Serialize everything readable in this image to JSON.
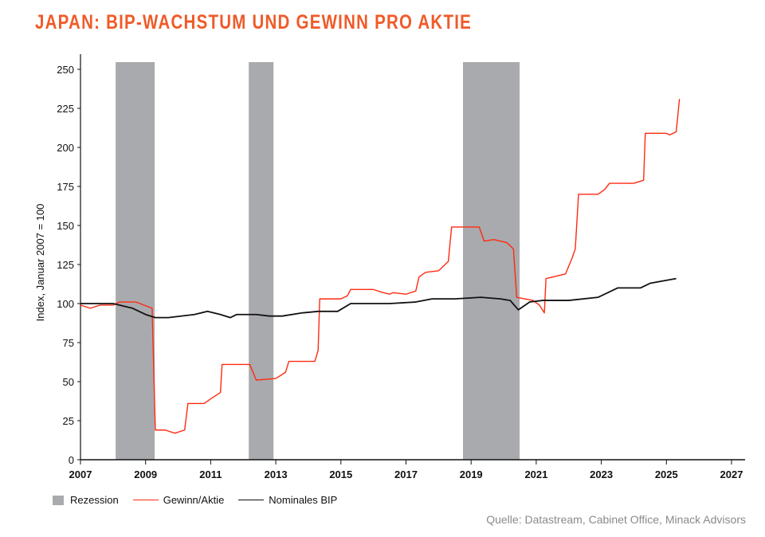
{
  "title": "JAPAN: BIP-WACHSTUM UND GEWINN PRO AKTIE",
  "source": "Quelle: Datastream, Cabinet Office, Minack Advisors",
  "chart_data": {
    "type": "line",
    "title": "JAPAN: BIP-WACHSTUM UND GEWINN PRO AKTIE",
    "xlabel": "",
    "ylabel": "Index, Januar 2007 = 100",
    "xlim": [
      2007,
      2027.4
    ],
    "ylim": [
      0,
      250
    ],
    "xticks": [
      2007,
      2009,
      2011,
      2013,
      2015,
      2017,
      2019,
      2021,
      2023,
      2025,
      2027
    ],
    "yticks": [
      0,
      25,
      50,
      75,
      100,
      125,
      150,
      175,
      200,
      225,
      250
    ],
    "grid": false,
    "legend_position": "bottom-left",
    "recessions": {
      "name": "Rezession",
      "color": "#a9aaad",
      "periods": [
        [
          2008.08,
          2009.28
        ],
        [
          2012.17,
          2012.93
        ],
        [
          2018.75,
          2020.49
        ]
      ]
    },
    "series": [
      {
        "name": "Gewinn/Aktie",
        "color": "#ff2a10",
        "points": [
          [
            2007,
            99
          ],
          [
            2007.3,
            97
          ],
          [
            2007.6,
            99
          ],
          [
            2008,
            99
          ],
          [
            2008.2,
            101
          ],
          [
            2008.7,
            101
          ],
          [
            2009.2,
            97
          ],
          [
            2009.3,
            19
          ],
          [
            2009.6,
            19
          ],
          [
            2009.9,
            17
          ],
          [
            2010.2,
            19
          ],
          [
            2010.3,
            36
          ],
          [
            2010.8,
            36
          ],
          [
            2011.0,
            39
          ],
          [
            2011.3,
            43
          ],
          [
            2011.35,
            61
          ],
          [
            2012.2,
            61
          ],
          [
            2012.4,
            51
          ],
          [
            2013.0,
            52
          ],
          [
            2013.3,
            56
          ],
          [
            2013.4,
            63
          ],
          [
            2014.2,
            63
          ],
          [
            2014.3,
            70
          ],
          [
            2014.35,
            103
          ],
          [
            2015.0,
            103
          ],
          [
            2015.2,
            105
          ],
          [
            2015.3,
            109
          ],
          [
            2016.0,
            109
          ],
          [
            2016.3,
            107
          ],
          [
            2016.5,
            106
          ],
          [
            2016.6,
            107
          ],
          [
            2017.0,
            106
          ],
          [
            2017.3,
            108
          ],
          [
            2017.4,
            117
          ],
          [
            2017.6,
            120
          ],
          [
            2018.0,
            121
          ],
          [
            2018.3,
            127
          ],
          [
            2018.4,
            149
          ],
          [
            2019.25,
            149
          ],
          [
            2019.4,
            140
          ],
          [
            2019.7,
            141
          ],
          [
            2020.1,
            139
          ],
          [
            2020.3,
            135
          ],
          [
            2020.4,
            104
          ],
          [
            2020.9,
            102
          ],
          [
            2021.1,
            99
          ],
          [
            2021.25,
            94
          ],
          [
            2021.3,
            116
          ],
          [
            2021.9,
            119
          ],
          [
            2022.1,
            129
          ],
          [
            2022.2,
            135
          ],
          [
            2022.3,
            170
          ],
          [
            2022.9,
            170
          ],
          [
            2023.1,
            173
          ],
          [
            2023.25,
            177
          ],
          [
            2024.0,
            177
          ],
          [
            2024.3,
            179
          ],
          [
            2024.35,
            209
          ],
          [
            2025.0,
            209
          ],
          [
            2025.1,
            208
          ],
          [
            2025.3,
            210
          ],
          [
            2025.4,
            231
          ]
        ]
      },
      {
        "name": "Nominales BIP",
        "color": "#111111",
        "points": [
          [
            2007,
            100
          ],
          [
            2008,
            100
          ],
          [
            2008.6,
            97
          ],
          [
            2009.0,
            93
          ],
          [
            2009.3,
            91
          ],
          [
            2009.7,
            91
          ],
          [
            2010.5,
            93
          ],
          [
            2010.9,
            95
          ],
          [
            2011.3,
            93
          ],
          [
            2011.6,
            91
          ],
          [
            2011.8,
            93
          ],
          [
            2012.4,
            93
          ],
          [
            2012.8,
            92
          ],
          [
            2013.2,
            92
          ],
          [
            2013.8,
            94
          ],
          [
            2014.3,
            95
          ],
          [
            2014.9,
            95
          ],
          [
            2015.3,
            100
          ],
          [
            2016.5,
            100
          ],
          [
            2017.3,
            101
          ],
          [
            2017.8,
            103
          ],
          [
            2018.5,
            103
          ],
          [
            2019.3,
            104
          ],
          [
            2019.9,
            103
          ],
          [
            2020.2,
            102
          ],
          [
            2020.45,
            96
          ],
          [
            2020.8,
            101
          ],
          [
            2021.2,
            102
          ],
          [
            2022.0,
            102
          ],
          [
            2022.9,
            104
          ],
          [
            2023.2,
            107
          ],
          [
            2023.5,
            110
          ],
          [
            2024.2,
            110
          ],
          [
            2024.5,
            113
          ],
          [
            2025.3,
            116
          ]
        ]
      }
    ]
  }
}
